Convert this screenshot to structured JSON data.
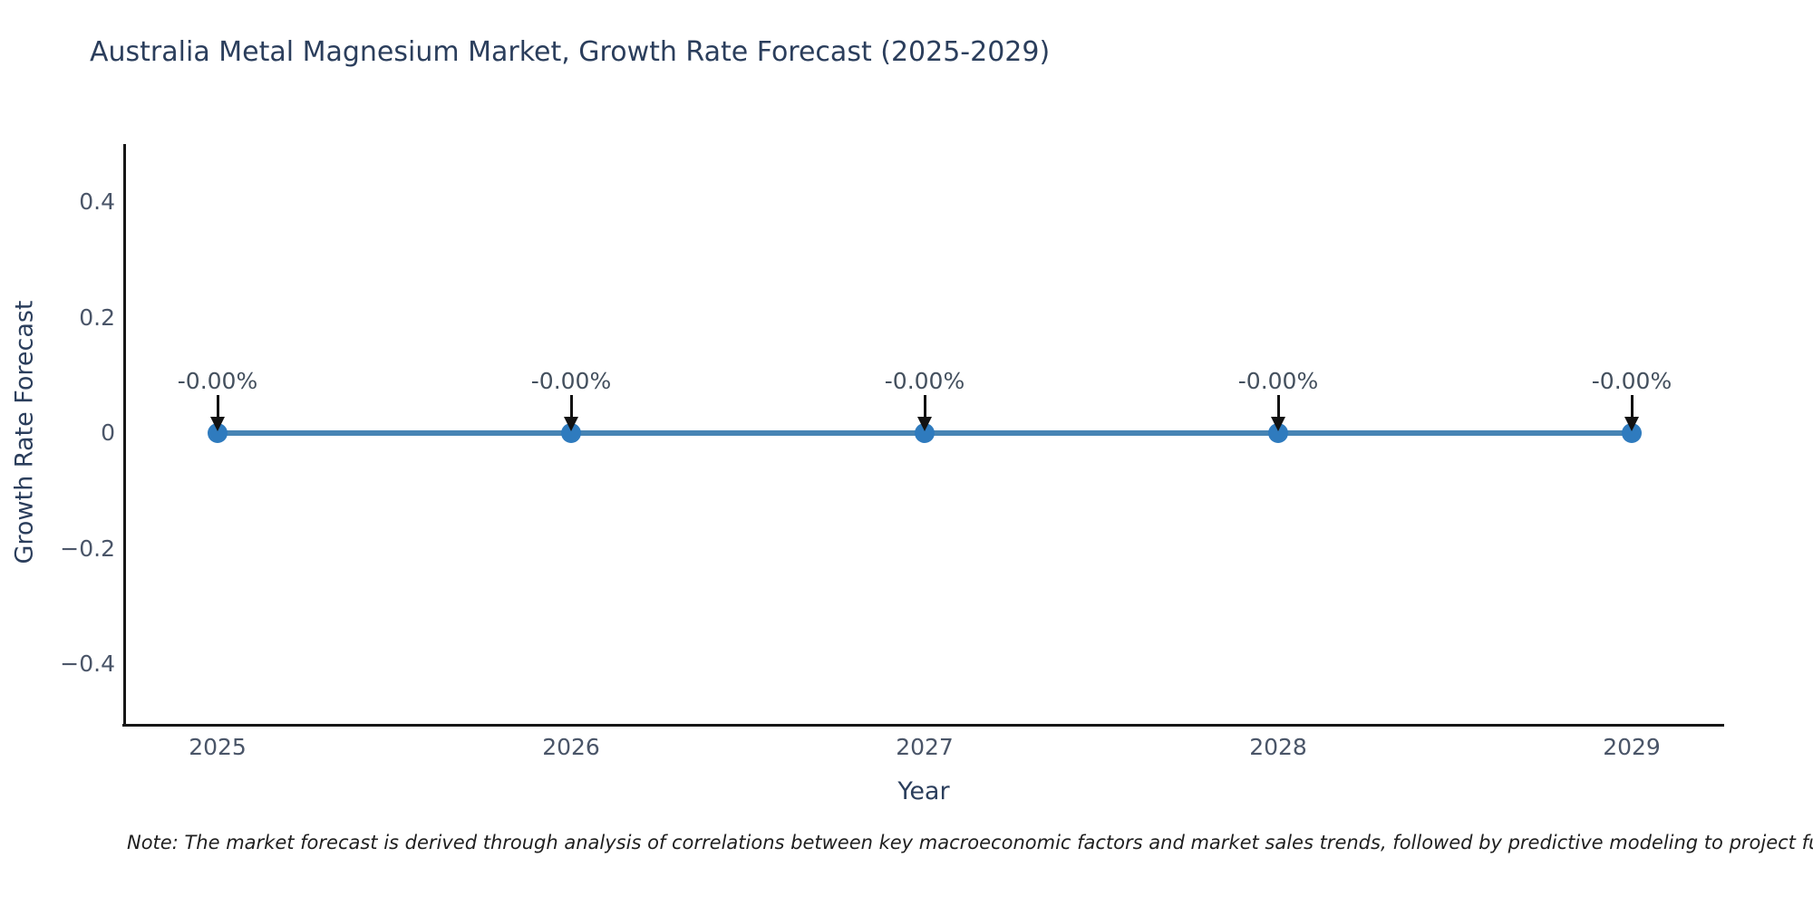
{
  "title": "Australia Metal Magnesium Market, Growth Rate Forecast (2025-2029)",
  "note": "Note: The market forecast is derived through analysis of correlations between key macroeconomic factors and market sales trends, followed by predictive modeling to project future sa",
  "chart_data": {
    "type": "line",
    "title": "Australia Metal Magnesium Market, Growth Rate Forecast (2025-2029)",
    "x": [
      2025,
      2026,
      2027,
      2028,
      2029
    ],
    "x_tick_labels": [
      "2025",
      "2026",
      "2027",
      "2028",
      "2029"
    ],
    "series": [
      {
        "name": "Growth Rate Forecast",
        "values": [
          0,
          0,
          0,
          0,
          0
        ]
      }
    ],
    "point_labels": [
      "-0.00%",
      "-0.00%",
      "-0.00%",
      "-0.00%",
      "-0.00%"
    ],
    "xlabel": "Year",
    "ylabel": "Growth Rate Forecast",
    "xlim": [
      2024.74,
      2029.26
    ],
    "ylim": [
      -0.5,
      0.5
    ],
    "yticks": [
      0.4,
      0.2,
      0,
      -0.2,
      -0.4
    ],
    "ytick_labels": [
      "0.4",
      "0.2",
      "0",
      "−0.2",
      "−0.4"
    ],
    "grid": false,
    "legend": "none",
    "line_color": "#4784b4",
    "marker_color": "#2f7bbe",
    "arrow_color": "#121212",
    "title_color": "#2b3e5c",
    "tick_color": "#4a5568"
  }
}
